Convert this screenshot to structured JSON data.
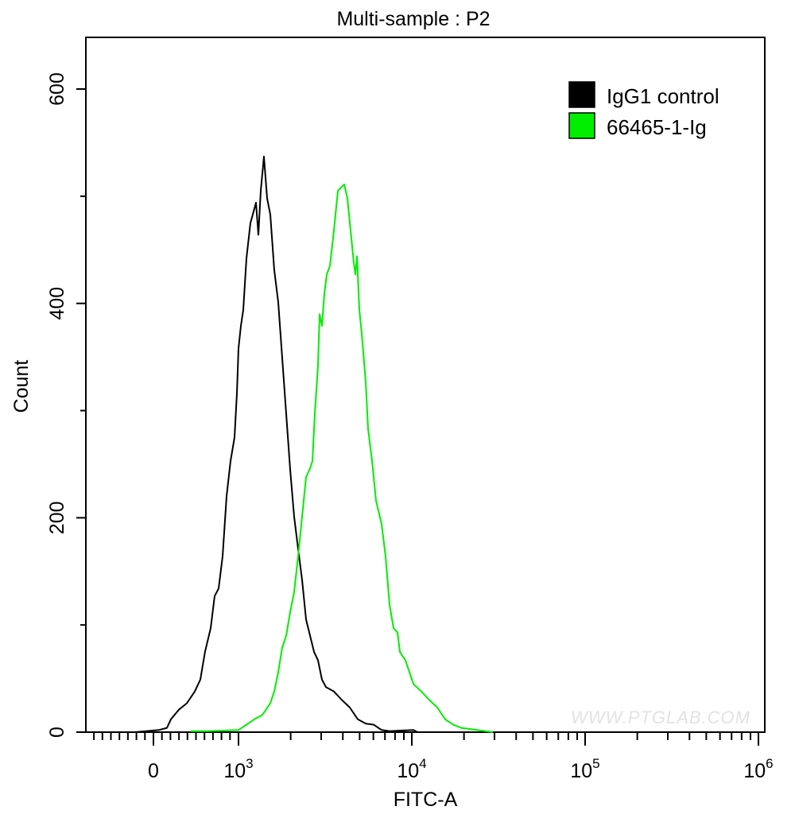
{
  "chart_data": {
    "type": "line",
    "title": "Multi-sample : P2",
    "xlabel": "FITC-A",
    "ylabel": "Count",
    "x_scale": "biexponential (linear near 0, log above 10^3)",
    "xlim": [
      -780,
      1000000
    ],
    "ylim": [
      0,
      650
    ],
    "x_ticks": [
      {
        "value": 0,
        "base": "0",
        "exp": ""
      },
      {
        "value": 1000,
        "base": "10",
        "exp": "3"
      },
      {
        "value": 10000,
        "base": "10",
        "exp": "4"
      },
      {
        "value": 100000,
        "base": "10",
        "exp": "5"
      },
      {
        "value": 1000000,
        "base": "10",
        "exp": "6"
      }
    ],
    "y_ticks": [
      0,
      200,
      400,
      600
    ],
    "y_tick_labels": [
      "0",
      "200",
      "400",
      "600"
    ],
    "grid": false,
    "legend_position": "top-right",
    "watermark": "WWW.PTGLAB.COM",
    "series": [
      {
        "name": "IgG1 control",
        "color": "#000000",
        "points": [
          [
            -215,
            0
          ],
          [
            65,
            2
          ],
          [
            159,
            4
          ],
          [
            206,
            12
          ],
          [
            299,
            21
          ],
          [
            393,
            27
          ],
          [
            486,
            38
          ],
          [
            551,
            49
          ],
          [
            607,
            75
          ],
          [
            673,
            97
          ],
          [
            720,
            127
          ],
          [
            766,
            134
          ],
          [
            813,
            164
          ],
          [
            860,
            220
          ],
          [
            907,
            253
          ],
          [
            953,
            275
          ],
          [
            981,
            316
          ],
          [
            1000,
            358
          ],
          [
            1032,
            379
          ],
          [
            1065,
            394
          ],
          [
            1111,
            442
          ],
          [
            1172,
            475
          ],
          [
            1209,
            483
          ],
          [
            1261,
            494
          ],
          [
            1302,
            464
          ],
          [
            1344,
            505
          ],
          [
            1402,
            537
          ],
          [
            1463,
            498
          ],
          [
            1526,
            483
          ],
          [
            1608,
            431
          ],
          [
            1696,
            401
          ],
          [
            1788,
            349
          ],
          [
            1885,
            297
          ],
          [
            1987,
            245
          ],
          [
            2095,
            201
          ],
          [
            2208,
            171
          ],
          [
            2328,
            142
          ],
          [
            2455,
            105
          ],
          [
            2588,
            90
          ],
          [
            2729,
            75
          ],
          [
            2876,
            67
          ],
          [
            3032,
            49
          ],
          [
            3196,
            42
          ],
          [
            3553,
            38
          ],
          [
            3948,
            30
          ],
          [
            4387,
            23
          ],
          [
            4877,
            12
          ],
          [
            5419,
            8
          ],
          [
            6024,
            7
          ],
          [
            6695,
            2
          ],
          [
            7441,
            1
          ],
          [
            10212,
            2
          ],
          [
            10770,
            0
          ]
        ]
      },
      {
        "name": "66465-1-Ig",
        "color": "#00ee00",
        "points": [
          [
            439,
            1
          ],
          [
            626,
            1
          ],
          [
            1000,
            2
          ],
          [
            1111,
            7
          ],
          [
            1235,
            12
          ],
          [
            1373,
            16
          ],
          [
            1526,
            27
          ],
          [
            1608,
            38
          ],
          [
            1696,
            56
          ],
          [
            1788,
            79
          ],
          [
            1885,
            90
          ],
          [
            1987,
            112
          ],
          [
            2095,
            131
          ],
          [
            2208,
            164
          ],
          [
            2328,
            201
          ],
          [
            2455,
            238
          ],
          [
            2588,
            246
          ],
          [
            2671,
            253
          ],
          [
            2757,
            297
          ],
          [
            2876,
            342
          ],
          [
            2937,
            390
          ],
          [
            3032,
            379
          ],
          [
            3129,
            409
          ],
          [
            3230,
            427
          ],
          [
            3370,
            435
          ],
          [
            3553,
            468
          ],
          [
            3745,
            505
          ],
          [
            3948,
            509
          ],
          [
            4075,
            511
          ],
          [
            4250,
            498
          ],
          [
            4435,
            468
          ],
          [
            4626,
            438
          ],
          [
            4725,
            427
          ],
          [
            4826,
            444
          ],
          [
            4981,
            394
          ],
          [
            5140,
            372
          ],
          [
            5419,
            327
          ],
          [
            5593,
            283
          ],
          [
            5896,
            253
          ],
          [
            6218,
            216
          ],
          [
            6695,
            194
          ],
          [
            7058,
            164
          ],
          [
            7441,
            119
          ],
          [
            7845,
            97
          ],
          [
            8270,
            93
          ],
          [
            8536,
            75
          ],
          [
            9190,
            67
          ],
          [
            9687,
            56
          ],
          [
            10212,
            45
          ],
          [
            11350,
            38
          ],
          [
            12620,
            30
          ],
          [
            14020,
            23
          ],
          [
            15590,
            12
          ],
          [
            17320,
            7
          ],
          [
            19250,
            4
          ],
          [
            23770,
            2
          ],
          [
            29370,
            0
          ]
        ]
      }
    ]
  }
}
